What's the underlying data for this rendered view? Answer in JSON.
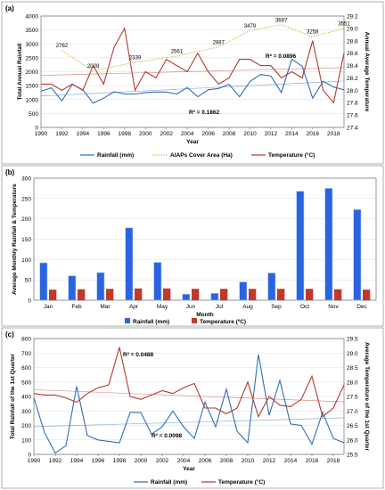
{
  "chart_data": [
    {
      "type": "line",
      "panel_label": "(a)",
      "xlabel": "Year",
      "ylabel": "Total Annual Rainfall",
      "ylabel_right": "Annual Average Temperature",
      "xlim": [
        1990,
        2019
      ],
      "ylim": [
        0,
        4000
      ],
      "ylim_right": [
        27.4,
        29.2
      ],
      "x_ticks": [
        "1990",
        "1992",
        "1994",
        "1996",
        "1998",
        "2000",
        "2002",
        "2004",
        "2006",
        "2008",
        "2010",
        "2012",
        "2014",
        "2016",
        "2018"
      ],
      "y_ticks": [
        "0",
        "500",
        "1000",
        "1500",
        "2000",
        "2500",
        "3000",
        "3500",
        "4000"
      ],
      "y_ticks_right": [
        "27.4",
        "27.6",
        "27.8",
        "28.0",
        "28.2",
        "28.4",
        "28.6",
        "28.8",
        "29.0",
        "29.2"
      ],
      "x": [
        1990,
        1991,
        1992,
        1993,
        1994,
        1995,
        1996,
        1997,
        1998,
        1999,
        2000,
        2001,
        2002,
        2003,
        2004,
        2005,
        2006,
        2007,
        2008,
        2009,
        2010,
        2011,
        2012,
        2013,
        2014,
        2015,
        2016,
        2017,
        2018,
        2019
      ],
      "series": [
        {
          "name": "Rainfall (mm)",
          "color": "#2f6fb4",
          "axis": "left",
          "values": [
            1300,
            1420,
            950,
            1550,
            1350,
            870,
            1050,
            1280,
            1200,
            1200,
            1250,
            1270,
            1270,
            1200,
            1430,
            1100,
            1350,
            1400,
            1550,
            1100,
            1650,
            1900,
            1850,
            1250,
            2450,
            2200,
            1050,
            1650,
            1450,
            1350
          ]
        },
        {
          "name": "Temperature (°C)",
          "color": "#b23a2e",
          "axis": "right",
          "values": [
            28.1,
            28.1,
            28.0,
            28.1,
            28.0,
            28.4,
            28.1,
            28.7,
            29.0,
            28.0,
            28.3,
            28.2,
            28.5,
            28.4,
            28.3,
            28.6,
            28.3,
            28.1,
            28.2,
            28.5,
            28.5,
            28.4,
            28.4,
            28.2,
            28.3,
            28.2,
            28.8,
            28.0,
            27.8,
            28.6
          ]
        },
        {
          "name": "AIAPs Cover Area (Ha)",
          "color": "#c9a227",
          "style": "dotted",
          "x": [
            1992,
            1995,
            1999,
            2003,
            2007,
            2010,
            2013,
            2016,
            2019
          ],
          "values": [
            2762,
            2028,
            2339,
            2561,
            2887,
            3479,
            3687,
            3258,
            3551
          ],
          "data_labels": [
            "2762",
            "2028",
            "2339",
            "2561",
            "2887",
            "3479",
            "3687",
            "3258",
            "3551"
          ]
        }
      ],
      "annotations": [
        "R² = 0.0896",
        "R² = 0.1862"
      ],
      "legend": [
        "Rainfall (mm)",
        "AIAPs Cover Area (Ha)",
        "Temperature (°C)"
      ],
      "legend_position": "bottom",
      "grid": true
    },
    {
      "type": "bar",
      "panel_label": "(b)",
      "xlabel": "Month",
      "ylabel": "Average Monthly Rainfall & Temperature",
      "ylim": [
        0,
        300
      ],
      "y_ticks": [
        "0",
        "50",
        "100",
        "150",
        "200",
        "250",
        "300"
      ],
      "categories": [
        "Jan",
        "Feb",
        "Mar",
        "Apr",
        "May",
        "Jun",
        "Jul",
        "Aug",
        "Sep",
        "Oct",
        "Nov",
        "Dec"
      ],
      "series": [
        {
          "name": "Rainfall (mm)",
          "color": "#2b63e0",
          "values": [
            92,
            60,
            68,
            178,
            93,
            15,
            17,
            45,
            67,
            268,
            275,
            223
          ]
        },
        {
          "name": "Temperature (ºC)",
          "color": "#c0392b",
          "values": [
            26,
            27,
            28,
            29,
            29,
            28,
            28,
            28,
            28,
            28,
            27,
            26
          ]
        }
      ],
      "legend": [
        "Rainfall (mm)",
        "Temperature (ºC)"
      ],
      "legend_position": "bottom",
      "grid": true
    },
    {
      "type": "line",
      "panel_label": "(c)",
      "xlabel": "Year",
      "ylabel": "Total Rainfall of the 1st Quarter",
      "ylabel_right": "Average Temperature of the 1st Quarter",
      "xlim": [
        1990,
        2019
      ],
      "ylim": [
        0,
        800
      ],
      "ylim_right": [
        25.5,
        29.5
      ],
      "x_ticks": [
        "1990",
        "1992",
        "1994",
        "1996",
        "1998",
        "2000",
        "2002",
        "2004",
        "2006",
        "2008",
        "2010",
        "2012",
        "2014",
        "2016",
        "2018"
      ],
      "y_ticks": [
        "0",
        "100",
        "200",
        "300",
        "400",
        "500",
        "600",
        "700",
        "800"
      ],
      "y_ticks_right": [
        "25.5",
        "26.0",
        "26.5",
        "27.0",
        "27.5",
        "28.0",
        "28.5",
        "29.0",
        "29.5"
      ],
      "x": [
        1990,
        1991,
        1992,
        1993,
        1994,
        1995,
        1996,
        1997,
        1998,
        1999,
        2000,
        2001,
        2002,
        2003,
        2004,
        2005,
        2006,
        2007,
        2008,
        2009,
        2010,
        2011,
        2012,
        2013,
        2014,
        2015,
        2016,
        2017,
        2018,
        2019
      ],
      "series": [
        {
          "name": "Rainfall (mm)",
          "color": "#2f6fb4",
          "axis": "left",
          "values": [
            390,
            150,
            10,
            60,
            470,
            130,
            100,
            90,
            80,
            290,
            290,
            140,
            190,
            300,
            190,
            110,
            360,
            190,
            450,
            160,
            80,
            690,
            270,
            510,
            210,
            200,
            70,
            290,
            110,
            80
          ]
        },
        {
          "name": "Temperature (°C)",
          "color": "#b23a2e",
          "axis": "right",
          "values": [
            27.6,
            27.55,
            27.55,
            27.45,
            27.3,
            27.6,
            27.8,
            27.9,
            29.2,
            27.5,
            27.4,
            27.55,
            27.7,
            27.6,
            27.8,
            27.95,
            27.1,
            27.1,
            26.9,
            27.1,
            28.0,
            26.8,
            27.5,
            27.2,
            27.15,
            27.4,
            28.2,
            26.8,
            27.1,
            27.9
          ]
        }
      ],
      "annotations": [
        "R² = 0.0488",
        "R² = 0.0098"
      ],
      "legend": [
        "Rainfall (mm)",
        "Temperature (°C)"
      ],
      "legend_position": "bottom",
      "grid": true
    }
  ]
}
